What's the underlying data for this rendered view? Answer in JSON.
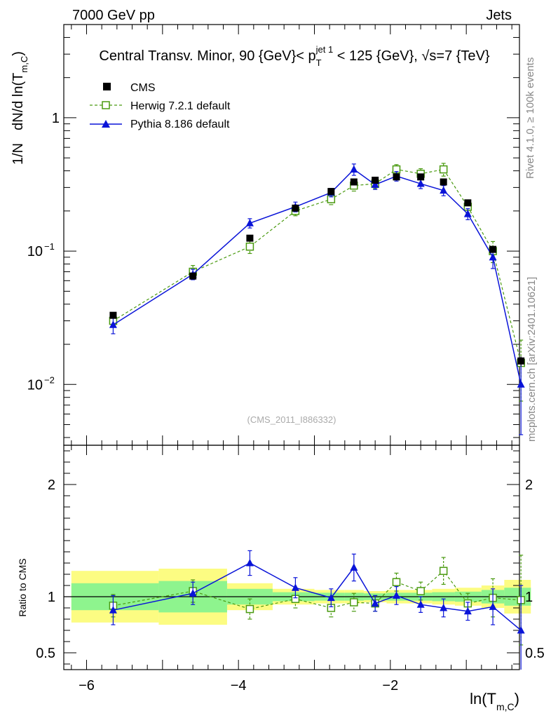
{
  "header": {
    "left": "7000 GeV pp",
    "right": "Jets",
    "title": "Central Transv. Minor, 90 {GeV}< p_T^{jet 1} < 125 {GeV}, √s=7 {TeV}",
    "title_parts": {
      "a": "Central Transv. Minor, 90 {GeV}< p",
      "sub": "T",
      "sup": "jet 1",
      "b": " < 125 {GeV}, ",
      "sqrt": "√",
      "c": "s=7 {TeV}"
    }
  },
  "side": {
    "rivet": "Rivet 4.1.0, ≥ 100k events",
    "mcplots": "mcplots.cern.ch [arXiv:2401.10621]"
  },
  "watermark": "(CMS_2011_I886332)",
  "colors": {
    "cms": "#000000",
    "herwig": "#4a9a10",
    "pythia": "#0a14d8",
    "band_inner": "#8ef48e",
    "band_outer": "#fcfc82"
  },
  "chart_data": [
    {
      "type": "scatter",
      "title": "Central Transv. Minor, 90 {GeV}< p_T^{jet 1} < 125 {GeV}, √s=7 {TeV}",
      "ylabel": "1/N  dN/d ln(T_{m,C})",
      "ylabel_parts": {
        "a": "1/N",
        "b": "dN/d ln(T",
        "sub": "m,C",
        "c": ")"
      },
      "yscale": "log",
      "xlim": [
        -6.3,
        -0.3
      ],
      "ylim": [
        0.0035,
        5.0
      ],
      "yticks": [
        {
          "value": 1,
          "label": "1"
        },
        {
          "value": 0.1,
          "label": "10",
          "exp": "−1"
        },
        {
          "value": 0.01,
          "label": "10",
          "exp": "−2"
        }
      ],
      "legend_position": "top-left",
      "x": [
        -5.65,
        -4.6,
        -3.85,
        -3.25,
        -2.78,
        -2.48,
        -2.2,
        -1.92,
        -1.6,
        -1.3,
        -0.98,
        -0.65,
        -0.28
      ],
      "series": [
        {
          "name": "CMS",
          "style": "filled-square",
          "values": [
            0.033,
            0.065,
            0.125,
            0.21,
            0.28,
            0.33,
            0.34,
            0.36,
            0.36,
            0.33,
            0.23,
            0.103,
            0.015
          ],
          "errors": [
            0.001,
            0.002,
            0.003,
            0.004,
            0.005,
            0.005,
            0.005,
            0.005,
            0.005,
            0.005,
            0.004,
            0.003,
            0.0012
          ]
        },
        {
          "name": "Herwig 7.2.1 default",
          "style": "dashed-open-square",
          "values": [
            0.03,
            0.07,
            0.108,
            0.2,
            0.245,
            0.31,
            0.32,
            0.41,
            0.38,
            0.41,
            0.215,
            0.1,
            0.0145
          ],
          "errors": [
            0.003,
            0.008,
            0.012,
            0.016,
            0.022,
            0.028,
            0.025,
            0.035,
            0.035,
            0.045,
            0.022,
            0.018,
            0.007
          ]
        },
        {
          "name": "Pythia 8.186 default",
          "style": "solid-triangle",
          "values": [
            0.028,
            0.067,
            0.162,
            0.215,
            0.275,
            0.41,
            0.315,
            0.365,
            0.32,
            0.285,
            0.19,
            0.09,
            0.01
          ],
          "errors": [
            0.004,
            0.006,
            0.013,
            0.018,
            0.02,
            0.04,
            0.025,
            0.03,
            0.026,
            0.025,
            0.018,
            0.016,
            0.0058
          ]
        }
      ]
    },
    {
      "type": "line",
      "ylabel": "Ratio to CMS",
      "xlabel": "ln(T_{m,C})",
      "xlabel_parts": {
        "a": "ln(T",
        "sub": "m,C",
        "b": ")"
      },
      "xlim": [
        -6.3,
        -0.3
      ],
      "ylim": [
        0.35,
        2.35
      ],
      "xticks": [
        {
          "value": -6,
          "label": "−6"
        },
        {
          "value": -4,
          "label": "−4"
        },
        {
          "value": -2,
          "label": "−2"
        }
      ],
      "yticks": [
        {
          "value": 0.5,
          "label": "0.5"
        },
        {
          "value": 1,
          "label": "1"
        },
        {
          "value": 2,
          "label": "2"
        }
      ],
      "reference_line": 1,
      "bands": {
        "edges": [
          -6.2,
          -5.05,
          -4.15,
          -3.55,
          -3.0,
          -2.6,
          -2.35,
          -2.05,
          -1.8,
          -1.45,
          -1.15,
          -0.8,
          -0.5,
          -0.15
        ],
        "inner": [
          0.12,
          0.14,
          0.07,
          0.04,
          0.035,
          0.035,
          0.03,
          0.035,
          0.035,
          0.04,
          0.045,
          0.06,
          0.08
        ],
        "outer": [
          0.23,
          0.25,
          0.12,
          0.07,
          0.06,
          0.06,
          0.05,
          0.06,
          0.06,
          0.07,
          0.08,
          0.1,
          0.15
        ]
      },
      "x": [
        -5.65,
        -4.6,
        -3.85,
        -3.25,
        -2.78,
        -2.48,
        -2.2,
        -1.92,
        -1.6,
        -1.3,
        -0.98,
        -0.65,
        -0.28
      ],
      "series": [
        {
          "name": "Herwig 7.2.1 default",
          "style": "dashed-open-square",
          "values": [
            0.92,
            1.05,
            0.89,
            0.98,
            0.9,
            0.95,
            0.94,
            1.13,
            1.05,
            1.23,
            0.94,
            0.99,
            0.97
          ],
          "errors": [
            0.1,
            0.1,
            0.09,
            0.08,
            0.08,
            0.08,
            0.07,
            0.08,
            0.08,
            0.12,
            0.09,
            0.17,
            0.4
          ]
        },
        {
          "name": "Pythia 8.186 default",
          "style": "solid-triangle",
          "values": [
            0.88,
            1.03,
            1.3,
            1.08,
            0.99,
            1.26,
            0.94,
            1.01,
            0.93,
            0.9,
            0.87,
            0.91,
            0.7
          ],
          "errors": [
            0.13,
            0.1,
            0.11,
            0.09,
            0.08,
            0.12,
            0.07,
            0.08,
            0.07,
            0.08,
            0.08,
            0.16,
            0.4
          ]
        }
      ]
    }
  ]
}
